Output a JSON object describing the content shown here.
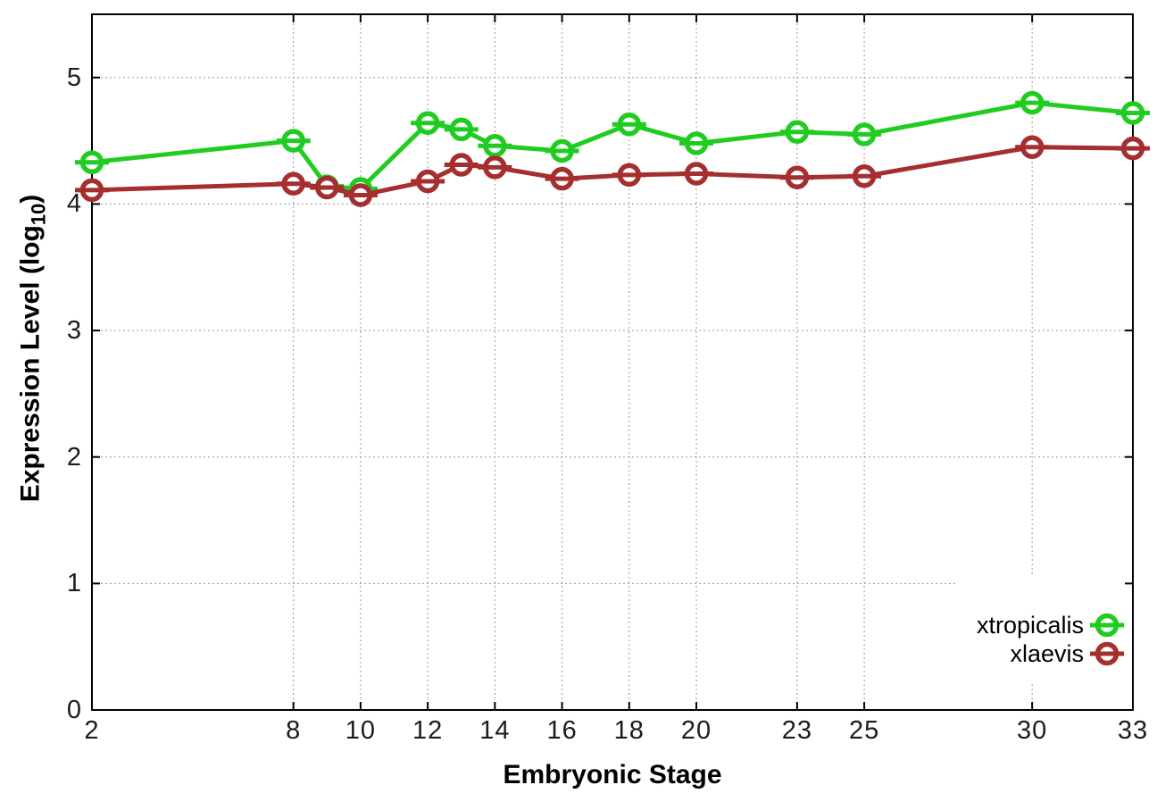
{
  "figure": {
    "background": "#ffffff",
    "xlabel": "Embryonic Stage",
    "ylabel_prefix": "Expression Level (log",
    "ylabel_sub": "10",
    "ylabel_suffix": ")"
  },
  "chart_data": {
    "type": "line",
    "title": "",
    "xlabel": "Embryonic Stage",
    "ylabel": "Expression Level (log10)",
    "x": [
      2,
      8,
      9,
      10,
      12,
      13,
      14,
      16,
      18,
      20,
      23,
      25,
      30,
      33
    ],
    "xticks": [
      2,
      8,
      10,
      12,
      14,
      16,
      18,
      20,
      23,
      25,
      30,
      33
    ],
    "yticks": [
      0,
      1,
      2,
      3,
      4,
      5
    ],
    "xlim": [
      2,
      33
    ],
    "ylim": [
      0,
      5.5
    ],
    "grid": true,
    "grid_style": "dotted",
    "legend_position": "inside-bottom-right",
    "marker": "open-circle-with-error-caps",
    "yerr_approx": 0.02,
    "axis_color": "#000000",
    "grid_color": "#999999",
    "series": [
      {
        "name": "xtropicalis",
        "color": "#21cc21",
        "values": [
          4.33,
          4.5,
          4.14,
          4.12,
          4.64,
          4.59,
          4.46,
          4.42,
          4.63,
          4.48,
          4.57,
          4.55,
          4.8,
          4.72
        ]
      },
      {
        "name": "xlaevis",
        "color": "#a52f2f",
        "values": [
          4.11,
          4.16,
          4.13,
          4.07,
          4.18,
          4.31,
          4.29,
          4.2,
          4.23,
          4.24,
          4.21,
          4.22,
          4.45,
          4.44
        ]
      }
    ]
  }
}
